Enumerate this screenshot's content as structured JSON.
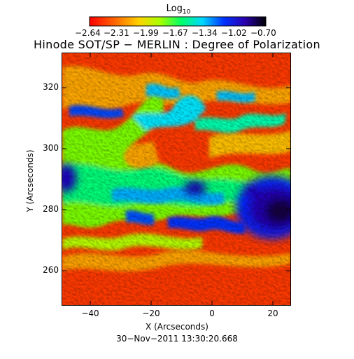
{
  "colorbar": {
    "title": "Log",
    "title_subscript": "10",
    "ticks": [
      "−2.64",
      "−2.31",
      "−1.99",
      "−1.67",
      "−1.34",
      "−1.02",
      "−0.70"
    ],
    "colors": [
      "#ff0000",
      "#ff6a00",
      "#ffd200",
      "#a8ff00",
      "#00ff66",
      "#00d8ff",
      "#0033ff",
      "#2a00b0",
      "#000000"
    ]
  },
  "title": "Hinode SOT/SP − MERLIN : Degree of Polarization",
  "axes": {
    "xlabel": "X (Arcseconds)",
    "ylabel": "Y (Arcseconds)",
    "x_ticks": [
      "−40",
      "−20",
      "0",
      "20"
    ],
    "y_ticks": [
      "320",
      "300",
      "280",
      "260"
    ]
  },
  "timestamp": "30−Nov−2011 13:30:20.668"
}
